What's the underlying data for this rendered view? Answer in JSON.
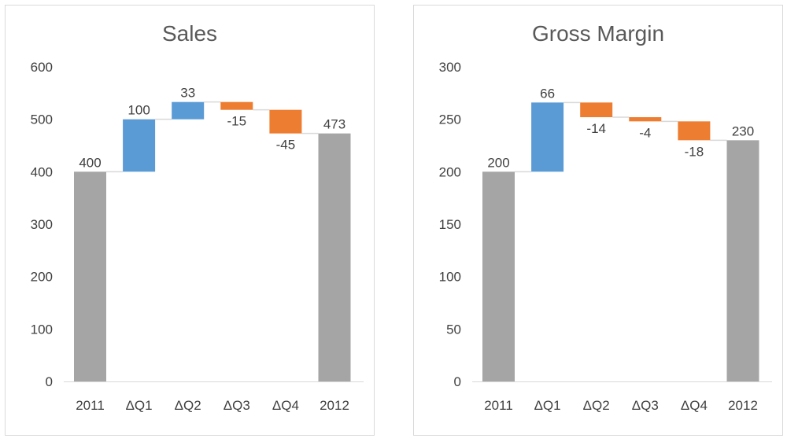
{
  "chart_data": [
    {
      "type": "bar",
      "variant": "waterfall",
      "title": "Sales",
      "categories": [
        "2011",
        "ΔQ1",
        "ΔQ2",
        "ΔQ3",
        "ΔQ4",
        "2012"
      ],
      "values": [
        400,
        100,
        33,
        -15,
        -45,
        473
      ],
      "labels": [
        "400",
        "100",
        "33",
        "-15",
        "-45",
        "473"
      ],
      "kinds": [
        "total",
        "delta",
        "delta",
        "delta",
        "delta",
        "total"
      ],
      "ylim": [
        0,
        600
      ],
      "yticks": [
        0,
        100,
        200,
        300,
        400,
        500,
        600
      ],
      "ytick_labels": [
        "0",
        "100",
        "200",
        "300",
        "400",
        "500",
        "600"
      ],
      "grid": false,
      "legend": "none",
      "colors": {
        "total": "#a5a5a5",
        "increase": "#5b9bd5",
        "decrease": "#ed7d31",
        "connector": "#d9d9d9"
      }
    },
    {
      "type": "bar",
      "variant": "waterfall",
      "title": "Gross Margin",
      "categories": [
        "2011",
        "ΔQ1",
        "ΔQ2",
        "ΔQ3",
        "ΔQ4",
        "2012"
      ],
      "values": [
        200,
        66,
        -14,
        -4,
        -18,
        230
      ],
      "labels": [
        "200",
        "66",
        "-14",
        "-4",
        "-18",
        "230"
      ],
      "kinds": [
        "total",
        "delta",
        "delta",
        "delta",
        "delta",
        "total"
      ],
      "ylim": [
        0,
        300
      ],
      "yticks": [
        0,
        50,
        100,
        150,
        200,
        250,
        300
      ],
      "ytick_labels": [
        "0",
        "50",
        "100",
        "150",
        "200",
        "250",
        "300"
      ],
      "grid": false,
      "legend": "none",
      "colors": {
        "total": "#a5a5a5",
        "increase": "#5b9bd5",
        "decrease": "#ed7d31",
        "connector": "#d9d9d9"
      }
    }
  ]
}
